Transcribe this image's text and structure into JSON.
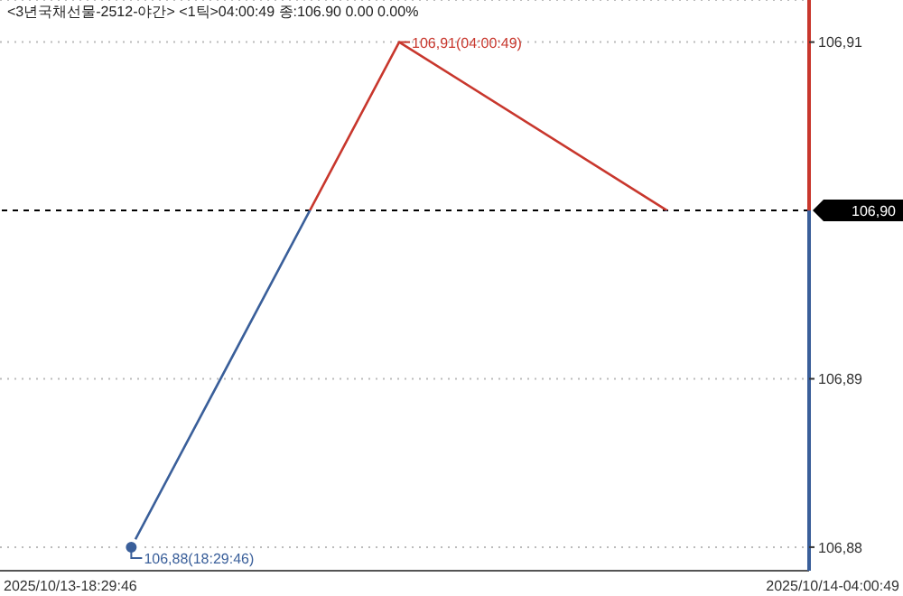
{
  "chart_data": {
    "type": "line",
    "title": "<3년국채선물-2512-야간> <1틱>04:00:49 종:106.90 0.00 0.00%",
    "categories": [
      null,
      null,
      null
    ],
    "series": [
      {
        "values": [
          106.88,
          106.91,
          106.9
        ],
        "colors": [
          "#3a5f9a",
          "#c8372d",
          "#c8372d"
        ],
        "value_labels": [
          "106,88(18:29:46)",
          "106,91(04:00:49)",
          null
        ]
      }
    ],
    "ylim": [
      106.8786,
      106.9125
    ],
    "yticks": [
      {
        "value": 106.88,
        "label": "106,88"
      },
      {
        "value": 106.89,
        "label": "106,89"
      },
      {
        "value": 106.91,
        "label": "106,91"
      }
    ],
    "grid": "y",
    "marker": "none",
    "line_style": "solid",
    "ref_lines": [
      {
        "axis": "y",
        "value": 106.9,
        "label": "106,90",
        "color": "#000000",
        "line_style": "dashed"
      }
    ],
    "annotations": [
      "2025/10/13-18:29:46",
      "2025/10/14-04:00:49"
    ]
  }
}
